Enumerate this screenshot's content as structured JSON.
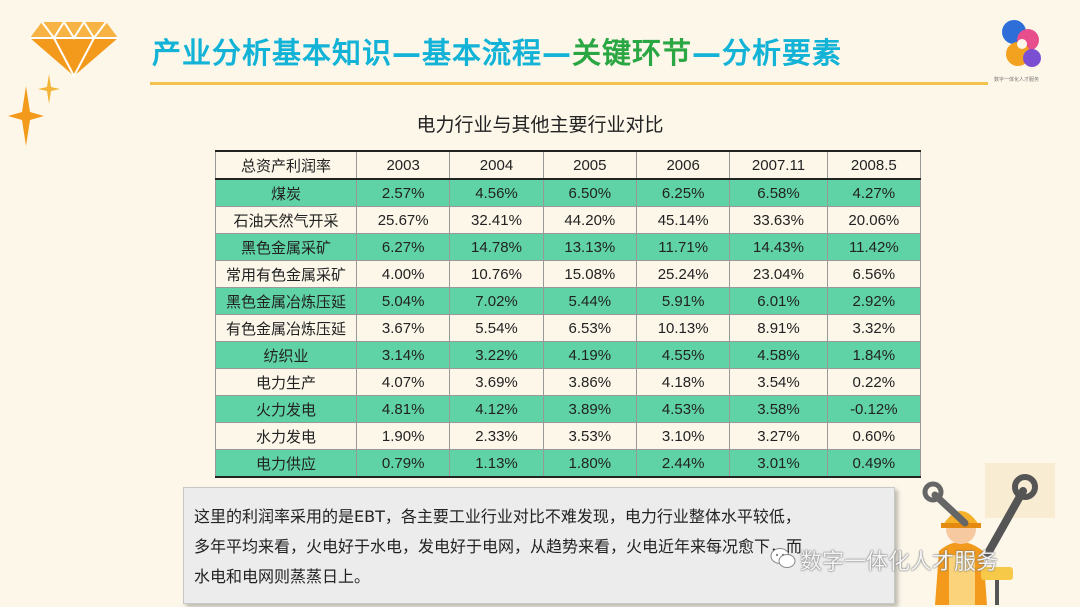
{
  "header": {
    "title_parts": [
      "产业分析基本知识—基本流程—",
      "关键环节",
      "—分析要素"
    ],
    "logo_caption": "数字一体化人才服务"
  },
  "table_title": "电力行业与其他主要行业对比",
  "table": {
    "headers": [
      "总资产利润率",
      "2003",
      "2004",
      "2005",
      "2006",
      "2007.11",
      "2008.5"
    ],
    "rows": [
      [
        "煤炭",
        "2.57%",
        "4.56%",
        "6.50%",
        "6.25%",
        "6.58%",
        "4.27%"
      ],
      [
        "石油天然气开采",
        "25.67%",
        "32.41%",
        "44.20%",
        "45.14%",
        "33.63%",
        "20.06%"
      ],
      [
        "黑色金属采矿",
        "6.27%",
        "14.78%",
        "13.13%",
        "11.71%",
        "14.43%",
        "11.42%"
      ],
      [
        "常用有色金属采矿",
        "4.00%",
        "10.76%",
        "15.08%",
        "25.24%",
        "23.04%",
        "6.56%"
      ],
      [
        "黑色金属冶炼压延",
        "5.04%",
        "7.02%",
        "5.44%",
        "5.91%",
        "6.01%",
        "2.92%"
      ],
      [
        "有色金属冶炼压延",
        "3.67%",
        "5.54%",
        "6.53%",
        "10.13%",
        "8.91%",
        "3.32%"
      ],
      [
        "纺织业",
        "3.14%",
        "3.22%",
        "4.19%",
        "4.55%",
        "4.58%",
        "1.84%"
      ],
      [
        "电力生产",
        "4.07%",
        "3.69%",
        "3.86%",
        "4.18%",
        "3.54%",
        "0.22%"
      ],
      [
        "火力发电",
        "4.81%",
        "4.12%",
        "3.89%",
        "4.53%",
        "3.58%",
        "-0.12%"
      ],
      [
        "水力发电",
        "1.90%",
        "2.33%",
        "3.53%",
        "3.10%",
        "3.27%",
        "0.60%"
      ],
      [
        "电力供应",
        "0.79%",
        "1.13%",
        "1.80%",
        "2.44%",
        "3.01%",
        "0.49%"
      ]
    ]
  },
  "note": {
    "lines": [
      "这里的利润率采用的是EBT，各主要工业行业对比不难发现，电力行业整体水平较低，",
      "多年平均来看，火电好于水电，发电好于电网，从趋势来看，火电近年来每况愈下，而",
      "水电和电网则蒸蒸日上。"
    ]
  },
  "watermark": {
    "text": "数字一体化人才服务"
  },
  "colors": {
    "title_blue": "#12b3d6",
    "title_green": "#2aa642",
    "row_green": "#5fd3a6",
    "gem_orange": "#f39a1c",
    "background": "#fdf7ea"
  },
  "icons": [
    "diamond-icon",
    "sparkle-icon",
    "brand-logo-icon",
    "worker-tools-icon",
    "wechat-icon"
  ]
}
